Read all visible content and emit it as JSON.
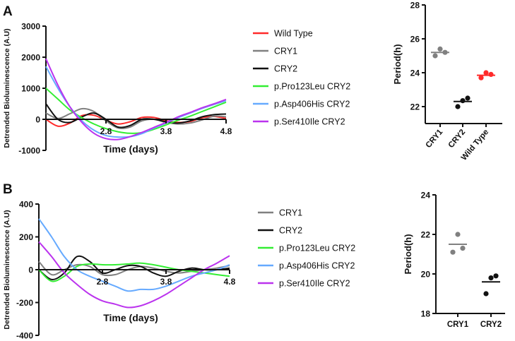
{
  "colors": {
    "wild_type": "#ff2a2a",
    "cry1": "#808080",
    "cry2": "#111111",
    "pro123leu": "#33ee33",
    "asp406his": "#66aaff",
    "ser410ile": "#bb33ee"
  },
  "chart_data": [
    {
      "id": "A-timecourse",
      "panel_label": "A",
      "type": "line",
      "xlabel": "Time (days)",
      "ylabel": "Detrended Bioluminescence (A.U)",
      "xlim": [
        1.8,
        4.8
      ],
      "ylim": [
        -1000,
        3000
      ],
      "xticks": [
        "2.8",
        "3.8",
        "4.8"
      ],
      "xtick_values": [
        2.8,
        3.8,
        4.8
      ],
      "yticks": [
        "3000",
        "2000",
        "1000",
        "0",
        "-1000"
      ],
      "ytick_values": [
        3000,
        2000,
        1000,
        0,
        -1000
      ],
      "legend_position": "right",
      "x": [
        1.8,
        2.0,
        2.2,
        2.4,
        2.6,
        2.8,
        3.0,
        3.2,
        3.4,
        3.6,
        3.8,
        4.0,
        4.2,
        4.4,
        4.6,
        4.8
      ],
      "series": [
        {
          "name": "Wild Type",
          "color_key": "wild_type",
          "values": [
            0,
            -220,
            -120,
            120,
            130,
            -30,
            -150,
            -80,
            60,
            60,
            -40,
            -100,
            -70,
            50,
            90,
            30
          ]
        },
        {
          "name": "CRY1",
          "color_key": "cry1",
          "values": [
            200,
            30,
            180,
            340,
            250,
            -50,
            -280,
            -250,
            -50,
            0,
            -100,
            -150,
            -120,
            -20,
            100,
            80
          ]
        },
        {
          "name": "CRY2",
          "color_key": "cry2",
          "values": [
            500,
            0,
            -100,
            80,
            200,
            0,
            -250,
            -200,
            0,
            0,
            -80,
            -120,
            -50,
            80,
            150,
            170
          ]
        },
        {
          "name": "p.Pro123Leu CRY2",
          "color_key": "pro123leu",
          "values": [
            1000,
            650,
            300,
            50,
            -150,
            -300,
            -400,
            -450,
            -430,
            -320,
            -180,
            -30,
            100,
            250,
            400,
            550
          ]
        },
        {
          "name": "p.Asp406His CRY2",
          "color_key": "asp406his",
          "values": [
            1700,
            1000,
            400,
            -50,
            -350,
            -520,
            -570,
            -560,
            -460,
            -280,
            -120,
            50,
            200,
            350,
            480,
            600
          ]
        },
        {
          "name": "p.Ser410Ile CRY2",
          "color_key": "ser410ile",
          "values": [
            1950,
            1100,
            400,
            -100,
            -450,
            -620,
            -650,
            -560,
            -420,
            -260,
            -100,
            80,
            220,
            370,
            500,
            640
          ]
        }
      ]
    },
    {
      "id": "A-period",
      "type": "scatter",
      "ylabel": "Period(h)",
      "ylim": [
        21,
        28
      ],
      "yticks": [
        "28",
        "26",
        "24",
        "22"
      ],
      "ytick_values": [
        28,
        26,
        24,
        22
      ],
      "categories": [
        "CRY1",
        "CRY2",
        "Wild Type"
      ],
      "category_color_keys": [
        "cry1",
        "cry2",
        "wild_type"
      ],
      "points": [
        [
          25.0,
          25.4,
          25.2
        ],
        [
          22.0,
          22.35,
          22.5
        ],
        [
          23.7,
          24.0,
          23.9
        ]
      ],
      "means": [
        25.2,
        22.3,
        23.85
      ],
      "rotated_labels": true
    },
    {
      "id": "B-timecourse",
      "panel_label": "B",
      "type": "line",
      "xlabel": "Time (days)",
      "ylabel": "Detrended Bioluminescence (A.U)",
      "xlim": [
        1.8,
        4.8
      ],
      "ylim": [
        -400,
        400
      ],
      "xticks": [
        "2.8",
        "3.8",
        "4.8"
      ],
      "xtick_values": [
        2.8,
        3.8,
        4.8
      ],
      "yticks": [
        "400",
        "200",
        "0",
        "-200",
        "-400"
      ],
      "ytick_values": [
        400,
        200,
        0,
        -200,
        -400
      ],
      "legend_position": "right",
      "x": [
        1.8,
        2.0,
        2.2,
        2.4,
        2.6,
        2.8,
        3.0,
        3.2,
        3.4,
        3.6,
        3.8,
        4.0,
        4.2,
        4.4,
        4.6,
        4.8
      ],
      "series": [
        {
          "name": "CRY1",
          "color_key": "cry1",
          "values": [
            50,
            -30,
            0,
            30,
            20,
            -30,
            -30,
            0,
            20,
            10,
            -10,
            -20,
            -10,
            0,
            10,
            25
          ]
        },
        {
          "name": "CRY2",
          "color_key": "cry2",
          "values": [
            0,
            -60,
            -20,
            80,
            50,
            -20,
            0,
            25,
            20,
            -20,
            -40,
            -10,
            10,
            0,
            0,
            10
          ]
        },
        {
          "name": "p.Pro123Leu CRY2",
          "color_key": "pro123leu",
          "values": [
            0,
            -70,
            -40,
            20,
            35,
            30,
            30,
            35,
            40,
            30,
            15,
            0,
            -10,
            -20,
            -30,
            -40
          ]
        },
        {
          "name": "p.Asp406His CRY2",
          "color_key": "asp406his",
          "values": [
            310,
            200,
            80,
            0,
            -40,
            -70,
            -100,
            -130,
            -120,
            -120,
            -100,
            -70,
            -40,
            -20,
            0,
            30
          ]
        },
        {
          "name": "p.Ser410Ile CRY2",
          "color_key": "ser410ile",
          "values": [
            170,
            80,
            -20,
            -90,
            -150,
            -190,
            -210,
            -230,
            -220,
            -190,
            -150,
            -100,
            -50,
            0,
            40,
            85
          ]
        }
      ]
    },
    {
      "id": "B-period",
      "type": "scatter",
      "ylabel": "Period(h)",
      "ylim": [
        18,
        24
      ],
      "yticks": [
        "24",
        "22",
        "20",
        "18"
      ],
      "ytick_values": [
        24,
        22,
        20,
        18
      ],
      "categories": [
        "CRY1",
        "CRY2"
      ],
      "category_color_keys": [
        "cry1",
        "cry2"
      ],
      "points": [
        [
          21.1,
          22.0,
          21.3
        ],
        [
          19.0,
          19.8,
          19.9
        ]
      ],
      "means": [
        21.5,
        19.6
      ],
      "rotated_labels": false
    }
  ]
}
